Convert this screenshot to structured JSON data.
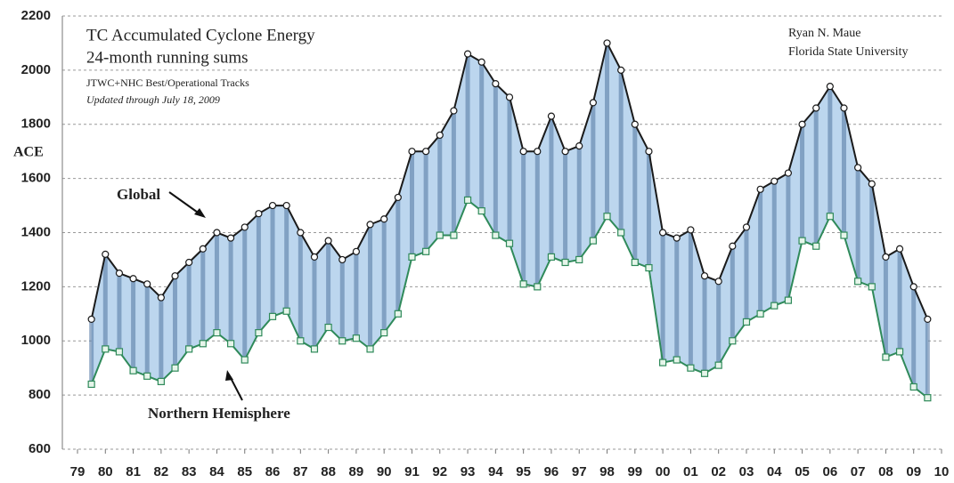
{
  "chart_data": {
    "type": "line",
    "title": "TC Accumulated Cyclone Energy",
    "subtitle": "24-month running sums",
    "source": "JTWC+NHC Best/Operational Tracks",
    "updated": "Updated through July 18, 2009",
    "author": "Ryan N. Maue",
    "affiliation": "Florida State University",
    "y_label": "ACE",
    "x": [
      1979.5,
      1980,
      1980.5,
      1981,
      1981.5,
      1982,
      1982.5,
      1983,
      1983.5,
      1984,
      1984.5,
      1985,
      1985.5,
      1986,
      1986.5,
      1987,
      1987.5,
      1988,
      1988.5,
      1989,
      1989.5,
      1990,
      1990.5,
      1991,
      1991.5,
      1992,
      1992.5,
      1993,
      1993.5,
      1994,
      1994.5,
      1995,
      1995.5,
      1996,
      1996.5,
      1997,
      1997.5,
      1998,
      1998.5,
      1999,
      1999.5,
      2000,
      2000.5,
      2001,
      2001.5,
      2002,
      2002.5,
      2003,
      2003.5,
      2004,
      2004.5,
      2005,
      2005.5,
      2006,
      2006.5,
      2007,
      2007.5,
      2008,
      2008.5,
      2009,
      2009.5
    ],
    "series": [
      {
        "name": "Global",
        "color": "#1a1a1a",
        "values": [
          1080,
          1320,
          1250,
          1230,
          1210,
          1160,
          1240,
          1290,
          1340,
          1400,
          1380,
          1420,
          1470,
          1500,
          1500,
          1400,
          1310,
          1370,
          1300,
          1330,
          1430,
          1450,
          1530,
          1700,
          1700,
          1760,
          1850,
          2060,
          2030,
          1950,
          1900,
          1700,
          1700,
          1830,
          1700,
          1720,
          1880,
          2100,
          2000,
          1800,
          1700,
          1400,
          1380,
          1410,
          1240,
          1220,
          1350,
          1420,
          1560,
          1590,
          1620,
          1800,
          1860,
          1940,
          1860,
          1640,
          1580,
          1310,
          1340,
          1200,
          1080
        ]
      },
      {
        "name": "Northern Hemisphere",
        "color": "#2f8a5a",
        "values": [
          840,
          970,
          960,
          890,
          870,
          850,
          900,
          970,
          990,
          1030,
          990,
          930,
          1030,
          1090,
          1110,
          1000,
          970,
          1050,
          1000,
          1010,
          970,
          1030,
          1100,
          1310,
          1330,
          1390,
          1390,
          1520,
          1480,
          1390,
          1360,
          1210,
          1200,
          1310,
          1290,
          1300,
          1370,
          1460,
          1400,
          1290,
          1270,
          920,
          930,
          900,
          880,
          910,
          1000,
          1070,
          1100,
          1130,
          1150,
          1370,
          1350,
          1460,
          1390,
          1220,
          1200,
          940,
          960,
          830,
          790
        ]
      }
    ],
    "xlim": [
      1979,
      2010
    ],
    "xticks": [
      {
        "value": 1979,
        "label": "79"
      },
      {
        "value": 1980,
        "label": "80"
      },
      {
        "value": 1981,
        "label": "81"
      },
      {
        "value": 1982,
        "label": "82"
      },
      {
        "value": 1983,
        "label": "83"
      },
      {
        "value": 1984,
        "label": "84"
      },
      {
        "value": 1985,
        "label": "85"
      },
      {
        "value": 1986,
        "label": "86"
      },
      {
        "value": 1987,
        "label": "87"
      },
      {
        "value": 1988,
        "label": "88"
      },
      {
        "value": 1989,
        "label": "89"
      },
      {
        "value": 1990,
        "label": "90"
      },
      {
        "value": 1991,
        "label": "91"
      },
      {
        "value": 1992,
        "label": "92"
      },
      {
        "value": 1993,
        "label": "93"
      },
      {
        "value": 1994,
        "label": "94"
      },
      {
        "value": 1995,
        "label": "95"
      },
      {
        "value": 1996,
        "label": "96"
      },
      {
        "value": 1997,
        "label": "97"
      },
      {
        "value": 1998,
        "label": "98"
      },
      {
        "value": 1999,
        "label": "99"
      },
      {
        "value": 2000,
        "label": "00"
      },
      {
        "value": 2001,
        "label": "01"
      },
      {
        "value": 2002,
        "label": "02"
      },
      {
        "value": 2003,
        "label": "03"
      },
      {
        "value": 2004,
        "label": "04"
      },
      {
        "value": 2005,
        "label": "05"
      },
      {
        "value": 2006,
        "label": "06"
      },
      {
        "value": 2007,
        "label": "07"
      },
      {
        "value": 2008,
        "label": "08"
      },
      {
        "value": 2009,
        "label": "09"
      },
      {
        "value": 2010,
        "label": "10"
      }
    ],
    "ylim": [
      600,
      2200
    ],
    "yticks": [
      600,
      800,
      1000,
      1200,
      1400,
      1600,
      1800,
      2000,
      2200
    ],
    "grid": true,
    "fill": "#bcd6ee"
  }
}
